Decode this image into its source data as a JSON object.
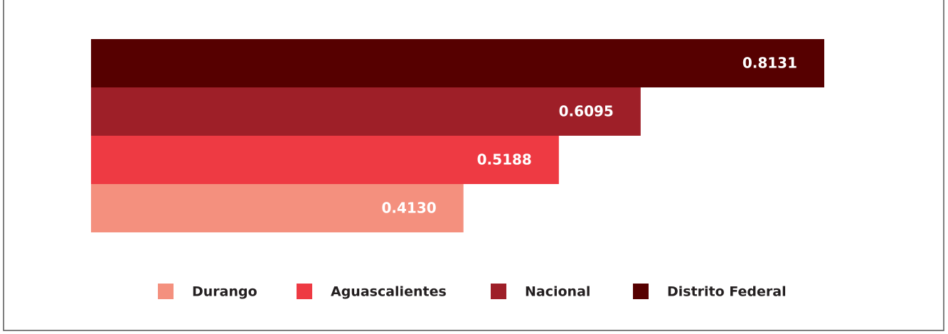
{
  "chart_data": {
    "type": "bar",
    "orientation": "horizontal",
    "series": [
      {
        "name": "Durango",
        "color": "#f4907e",
        "values": [
          0.413
        ],
        "value_labels": [
          "0.4130"
        ]
      },
      {
        "name": "Aguascalientes",
        "color": "#ee3a43",
        "values": [
          0.5188
        ],
        "value_labels": [
          "0.5188"
        ]
      },
      {
        "name": "Nacional",
        "color": "#9e1f28",
        "values": [
          0.6095
        ],
        "value_labels": [
          "0.6095"
        ]
      },
      {
        "name": "Distrito Federal",
        "color": "#560000",
        "values": [
          0.8131
        ],
        "value_labels": [
          "0.8131"
        ]
      }
    ]
  }
}
